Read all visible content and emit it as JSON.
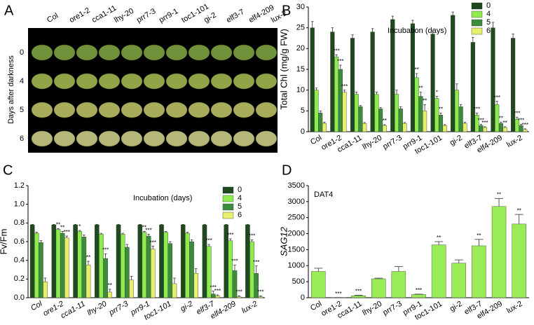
{
  "panel_a": {
    "label": "A",
    "columns": [
      "Col",
      "ore1-2",
      "cca1-11",
      "lhy-20",
      "prr7-3",
      "prr9-1",
      "toc1-101",
      "gi-2",
      "elf3-7",
      "elf4-209",
      "lux-2"
    ],
    "ylabel": "Days after darkness",
    "rows": [
      "0",
      "4",
      "5",
      "6"
    ]
  },
  "chart_data": [
    {
      "type": "bar",
      "panel_label": "B",
      "ylabel": "Total Chl (mg/g FW)",
      "legend_title": "Incubation (days)",
      "categories": [
        "Col",
        "ore1-2",
        "cca1-11",
        "lhy-20",
        "prr7-3",
        "prr9-1",
        "toc1-101",
        "gi-2",
        "elf3-7",
        "elf4-209",
        "lux-2"
      ],
      "ylim": [
        0,
        30
      ],
      "yticks": [
        0,
        5,
        10,
        15,
        20,
        25,
        30
      ],
      "series": [
        {
          "name": "0",
          "color": "#1e4a1e",
          "values": [
            25,
            24,
            22.5,
            24,
            27,
            26,
            23.5,
            28,
            21.5,
            25,
            22.5
          ],
          "errors": [
            1.5,
            1,
            0.8,
            0.8,
            0.8,
            0.8,
            0.8,
            0.8,
            1.2,
            1.3,
            1
          ],
          "annotations": [
            null,
            null,
            null,
            null,
            null,
            null,
            null,
            null,
            null,
            null,
            null
          ]
        },
        {
          "name": "4",
          "color": "#8fec4e",
          "values": [
            10,
            18,
            9,
            9,
            9,
            13,
            8,
            10,
            4,
            6.5,
            3
          ],
          "errors": [
            0.5,
            0.5,
            0.5,
            0.5,
            1,
            1,
            0.5,
            1.5,
            0.5,
            0.8,
            0.5
          ],
          "annotations": [
            null,
            "***",
            null,
            null,
            null,
            "**",
            "*",
            null,
            "***",
            "***",
            "***"
          ]
        },
        {
          "name": "5",
          "color": "#3c8c3c",
          "values": [
            4.5,
            15,
            6,
            5.5,
            5.5,
            8.5,
            4,
            6,
            1.5,
            2,
            1.5
          ],
          "errors": [
            0.5,
            1,
            0.3,
            0.3,
            0.5,
            1,
            0.5,
            0.5,
            0.3,
            0.3,
            0.3
          ],
          "annotations": [
            null,
            "***",
            null,
            null,
            null,
            "**",
            "**",
            null,
            "***",
            "**",
            "***"
          ]
        },
        {
          "name": "6",
          "color": "#e6f06a",
          "values": [
            2,
            9.5,
            2,
            1.5,
            2,
            5,
            1.5,
            2,
            1,
            1,
            0.5
          ],
          "errors": [
            0.3,
            0.5,
            0.2,
            0.2,
            0.2,
            1.5,
            0.2,
            0.3,
            0.2,
            0.2,
            0.2
          ],
          "annotations": [
            null,
            "***",
            null,
            "**",
            null,
            "**",
            null,
            null,
            "***",
            "**",
            "***"
          ]
        }
      ]
    },
    {
      "type": "bar",
      "panel_label": "C",
      "ylabel": "Fv/Fm",
      "legend_title": "Incubation (days)",
      "categories": [
        "Col",
        "ore1-2",
        "cca1-11",
        "lhy-20",
        "prr7-3",
        "prr9-1",
        "toc1-101",
        "gi-2",
        "elf3-7",
        "elf4-209",
        "lux-2"
      ],
      "ylim": [
        0,
        1.2
      ],
      "yticks": [
        {
          "value": 0,
          "label": "0.0"
        },
        0.2,
        0.4,
        0.6,
        0.8,
        {
          "value": 1,
          "label": "1.0"
        },
        1.2
      ],
      "series": [
        {
          "name": "0",
          "color": "#1e4a1e",
          "values": [
            0.78,
            0.78,
            0.78,
            0.78,
            0.78,
            0.78,
            0.78,
            0.78,
            0.78,
            0.78,
            0.78
          ],
          "errors": [
            0.005,
            0.005,
            0.005,
            0.005,
            0.005,
            0.005,
            0.005,
            0.005,
            0.005,
            0.005,
            0.005
          ],
          "annotations": [
            null,
            null,
            null,
            null,
            null,
            null,
            null,
            null,
            null,
            null,
            null
          ]
        },
        {
          "name": "4",
          "color": "#8fec4e",
          "values": [
            0.69,
            0.73,
            0.71,
            0.68,
            0.68,
            0.7,
            0.7,
            0.69,
            0.55,
            0.61,
            0.6
          ],
          "errors": [
            0.01,
            0.01,
            0.01,
            0.01,
            0.01,
            0.01,
            0.01,
            0.01,
            0.02,
            0.02,
            0.02
          ],
          "annotations": [
            null,
            "**",
            "*",
            null,
            null,
            "**",
            null,
            null,
            "***",
            "***",
            "***"
          ]
        },
        {
          "name": "5",
          "color": "#3c8c3c",
          "values": [
            0.59,
            0.69,
            0.65,
            0.42,
            0.54,
            0.66,
            0.58,
            0.6,
            0.04,
            0.29,
            0.26
          ],
          "errors": [
            0.02,
            0.02,
            0.02,
            0.05,
            0.03,
            0.02,
            0.02,
            0.02,
            0.03,
            0.06,
            0.08
          ],
          "annotations": [
            null,
            "**",
            null,
            "***",
            null,
            "***",
            null,
            null,
            "***",
            "***",
            "***"
          ]
        },
        {
          "name": "6",
          "color": "#e6f06a",
          "values": [
            0.17,
            0.64,
            0.35,
            0.06,
            0.19,
            0.52,
            0.15,
            0.26,
            0.02,
            0.01,
            0.01
          ],
          "errors": [
            0.04,
            0.02,
            0.04,
            0.03,
            0.04,
            0.03,
            0.06,
            0.05,
            0.01,
            0.01,
            0.01
          ],
          "annotations": [
            null,
            "***",
            "**",
            "**",
            null,
            "***",
            null,
            null,
            "***",
            "***",
            "***"
          ]
        }
      ]
    },
    {
      "type": "bar",
      "panel_label": "D",
      "ylabel": "SAG12",
      "annotation": "DAT4",
      "categories": [
        "Col",
        "ore1-2",
        "cca1-11",
        "lhy-20",
        "prr7-3",
        "prr9-1",
        "toc1-101",
        "gi-2",
        "elf3-7",
        "elf4-209",
        "lux-2"
      ],
      "ylim": [
        0,
        3500
      ],
      "yticks": [
        0,
        500,
        1000,
        1500,
        2000,
        2500,
        3000,
        3500
      ],
      "color": "#99ec55",
      "values": [
        820,
        5,
        60,
        590,
        820,
        100,
        1650,
        1080,
        1620,
        2850,
        2300
      ],
      "errors": [
        100,
        0,
        15,
        20,
        150,
        10,
        100,
        100,
        200,
        250,
        300
      ],
      "annotations": [
        null,
        "***",
        "***",
        null,
        null,
        "***",
        "**",
        null,
        "**",
        "**",
        "**"
      ]
    }
  ]
}
